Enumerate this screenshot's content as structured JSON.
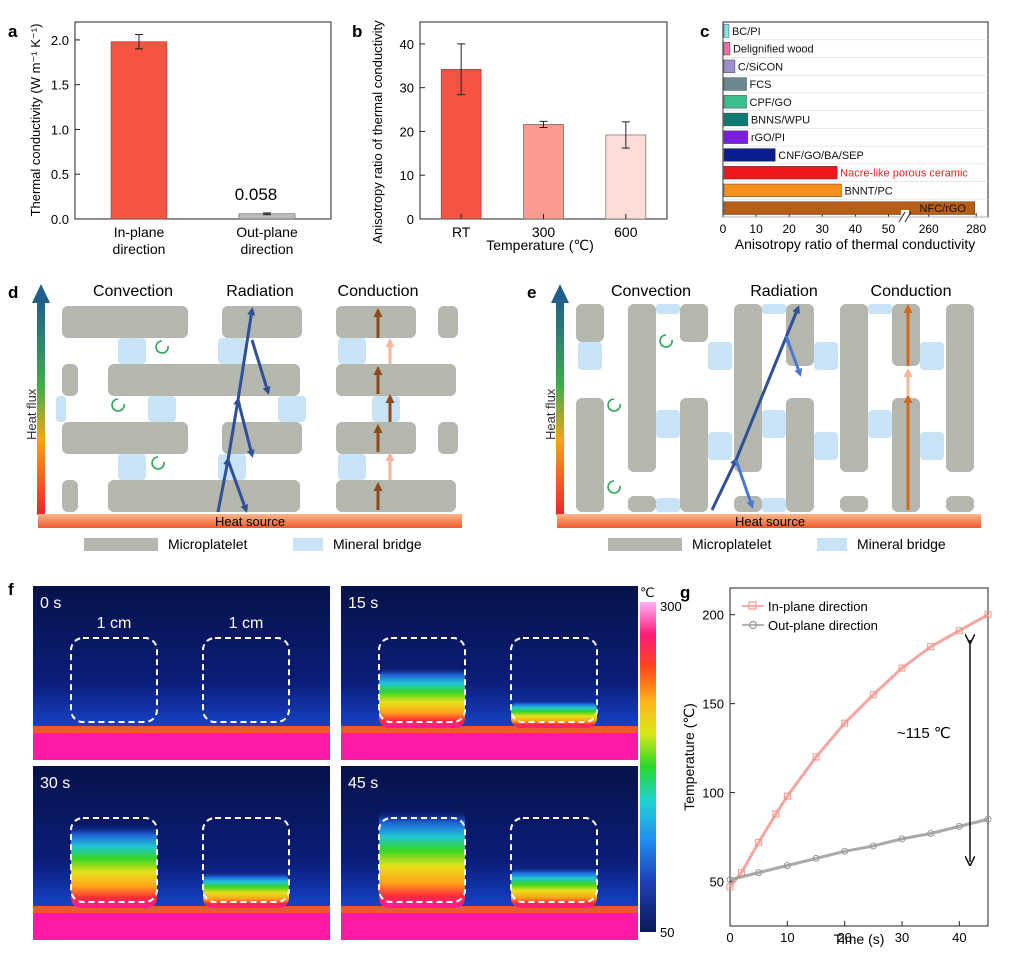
{
  "panel_letters": {
    "a": "a",
    "b": "b",
    "c": "c",
    "d": "d",
    "e": "e",
    "f": "f",
    "g": "g"
  },
  "chart_data": [
    {
      "panel": "a",
      "type": "bar",
      "ylabel": "Thermal conductivity (W m⁻¹ K⁻¹)",
      "ylim": [
        0,
        2.2
      ],
      "yticks": [
        "0.0",
        "0.5",
        "1.0",
        "1.5",
        "2.0"
      ],
      "categories": [
        [
          "In-plane",
          "direction"
        ],
        [
          "Out-plane",
          "direction"
        ]
      ],
      "values": [
        1.98,
        0.058
      ],
      "errors": [
        0.08,
        0.01
      ],
      "colors": [
        "#f65343",
        "#bdbdbd"
      ],
      "annotations": [
        {
          "text": "0.058",
          "category": 1
        }
      ]
    },
    {
      "panel": "b",
      "type": "bar",
      "ylabel": "Anisotropy ratio of thermal conductivity",
      "xlabel": "Temperature (℃)",
      "ylim": [
        0,
        45
      ],
      "yticks": [
        "0",
        "10",
        "20",
        "30",
        "40"
      ],
      "categories": [
        "RT",
        "300",
        "600"
      ],
      "values": [
        34.2,
        21.6,
        19.2
      ],
      "errors": [
        5.8,
        0.7,
        3.0
      ],
      "colors": [
        "#f65343",
        "#f99b8e",
        "#fcdcd6"
      ]
    },
    {
      "panel": "c",
      "type": "bar",
      "orientation": "horizontal",
      "xlabel": "Anisotropy ratio of thermal conductivity",
      "xticks": [
        "0",
        "10",
        "20",
        "30",
        "40",
        "50",
        "260",
        "280"
      ],
      "axis_break": {
        "low_max": 55,
        "high_min": 250,
        "high_max": 285
      },
      "categories": [
        "BC/PI",
        "Delignified wood",
        "C/SiCON",
        "FCS",
        "CPF/GO",
        "BNNS/WPU",
        "rGO/PI",
        "CNF/GO/BA/SEP",
        "Nacre-like porous ceramic",
        "BNNT/PC",
        "NFC/rGO"
      ],
      "values": [
        1.5,
        1.8,
        3.3,
        6.8,
        6.8,
        7.2,
        7.2,
        15.5,
        34.2,
        35.5,
        279
      ],
      "colors": [
        "#7ee6ec",
        "#ee6fa3",
        "#9b8fd0",
        "#6c8790",
        "#3bbd8d",
        "#0c7b74",
        "#7c1ee0",
        "#0a1d8f",
        "#f0161d",
        "#f8911b",
        "#b75d14"
      ],
      "highlight_label_color": {
        "Nacre-like porous ceramic": "#ee1c24"
      }
    },
    {
      "panel": "g",
      "type": "line",
      "xlabel": "Time (s)",
      "ylabel": "Temperature (℃)",
      "xlim": [
        0,
        45
      ],
      "ylim": [
        25,
        215
      ],
      "xticks": [
        "0",
        "10",
        "20",
        "30",
        "40"
      ],
      "yticks": [
        "50",
        "100",
        "150",
        "200"
      ],
      "series": [
        {
          "name": "In-plane direction",
          "color": "#f3968e",
          "marker": "square",
          "x": [
            0,
            2,
            5,
            8,
            10,
            15,
            20,
            25,
            30,
            35,
            40,
            45
          ],
          "y": [
            47,
            55,
            72,
            88,
            98,
            120,
            139,
            155,
            170,
            182,
            191,
            200
          ]
        },
        {
          "name": "Out-plane direction",
          "color": "#9a9a9a",
          "marker": "circle",
          "x": [
            0,
            5,
            10,
            15,
            20,
            25,
            30,
            35,
            40,
            45
          ],
          "y": [
            51,
            55,
            59,
            63,
            67,
            70,
            74,
            77,
            81,
            85
          ]
        }
      ],
      "annotations": [
        {
          "text": "~115 ℃"
        }
      ]
    }
  ],
  "diagram_d": {
    "headers": [
      "Convection",
      "Radiation",
      "Conduction"
    ],
    "heat_flux_label": "Heat flux",
    "heat_source_label": "Heat source",
    "legend": [
      "Microplatelet",
      "Mineral bridge"
    ]
  },
  "diagram_e": {
    "headers": [
      "Convection",
      "Radiation",
      "Conduction"
    ],
    "heat_flux_label": "Heat flux",
    "heat_source_label": "Heat source",
    "legend": [
      "Microplatelet",
      "Mineral bridge"
    ]
  },
  "thermal_images": {
    "frames": [
      "0 s",
      "15 s",
      "30 s",
      "45 s"
    ],
    "fill_levels": [
      0.0,
      0.55,
      0.8,
      0.95
    ],
    "scale_labels": [
      "1 cm",
      "1 cm"
    ],
    "colorbar_unit": "℃",
    "colorbar_max": "300",
    "colorbar_min": "50"
  },
  "colors": {
    "axis": "#222222",
    "microplatelet": "#b3b7ae",
    "bridge": "#c8e3f5",
    "radiation": "#2f4f99",
    "conduction": "#8b4a17",
    "conduction_light": "#f3b69a",
    "convection": "#27a64f"
  }
}
